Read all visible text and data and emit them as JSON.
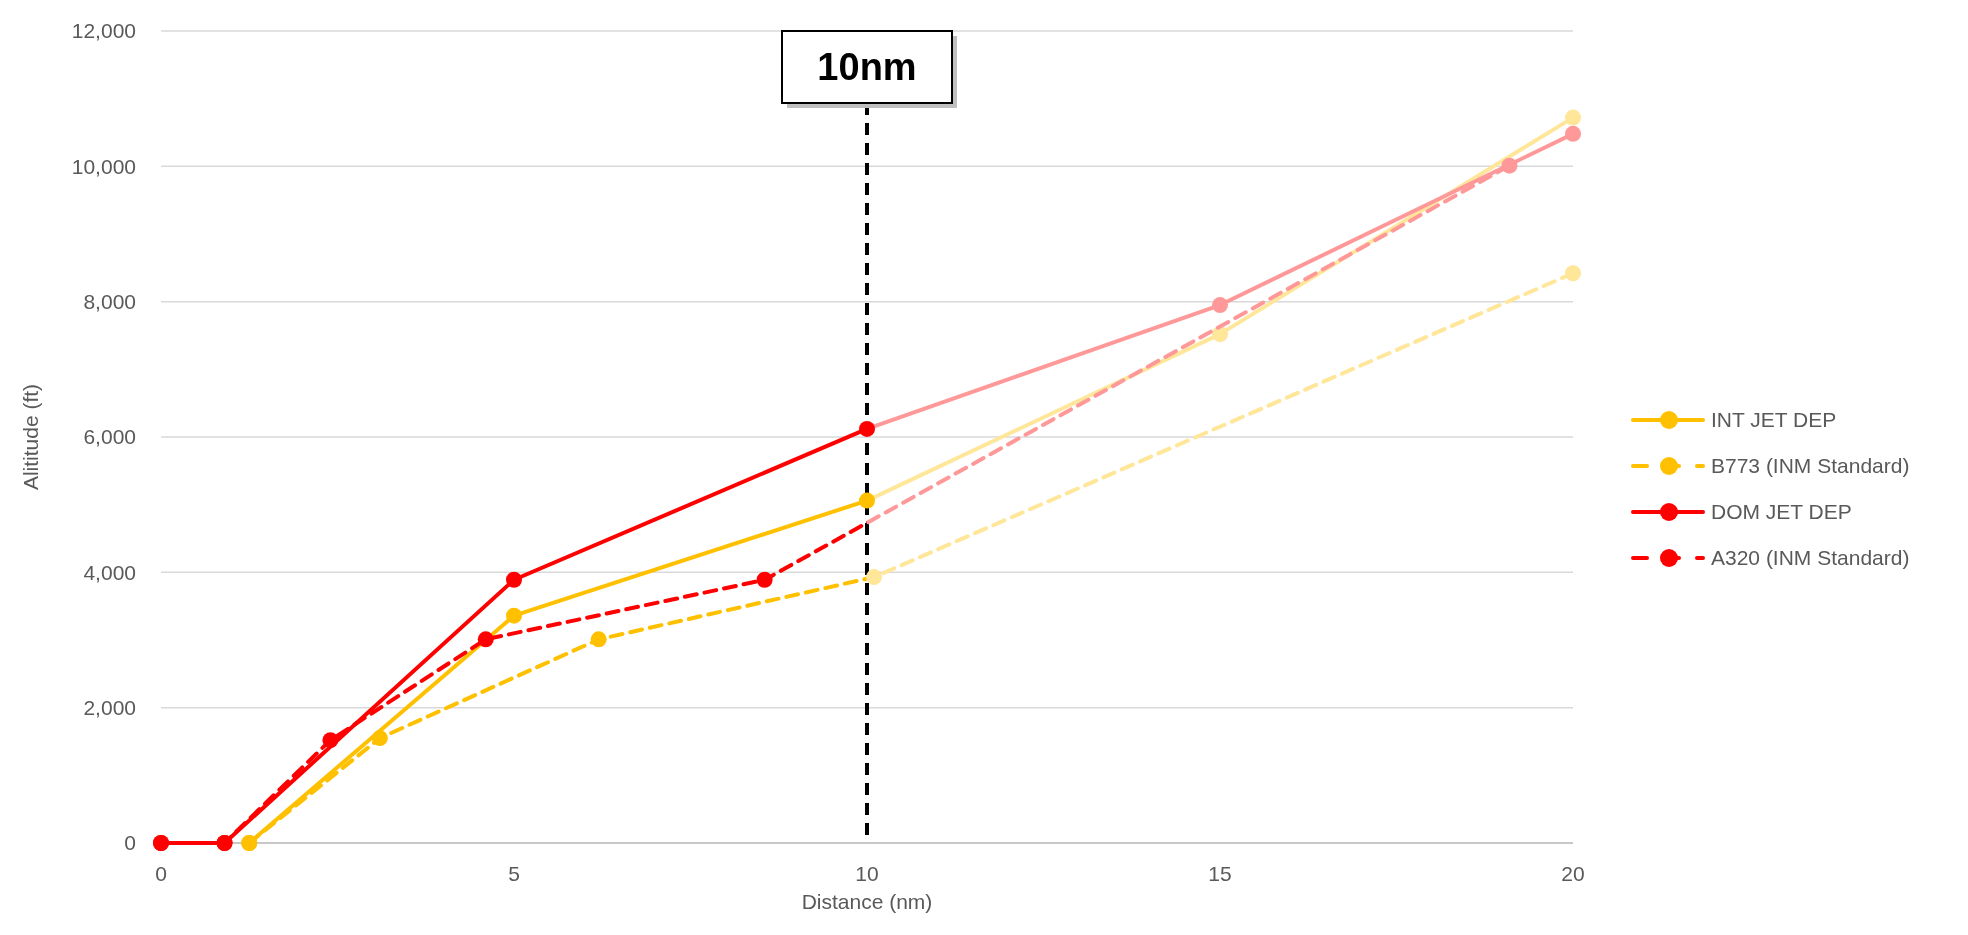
{
  "chart_data": {
    "type": "line",
    "xlabel": "Distance (nm)",
    "ylabel": "Alititude (ft)",
    "xlim": [
      0,
      20
    ],
    "xticks": [
      0,
      5,
      10,
      15,
      20
    ],
    "ylim": [
      0,
      12000
    ],
    "yticks": [
      {
        "value": 0,
        "label": "0"
      },
      {
        "value": 2000,
        "label": "2,000"
      },
      {
        "value": 4000,
        "label": "4,000"
      },
      {
        "value": 6000,
        "label": "6,000"
      },
      {
        "value": 8000,
        "label": "8,000"
      },
      {
        "value": 10000,
        "label": "10,000"
      },
      {
        "value": 12000,
        "label": "12,000"
      }
    ],
    "grid": "y",
    "legend": "right",
    "marker": "circle",
    "ref_lines": [
      {
        "axis": "x",
        "value": 10,
        "label": "10nm",
        "color": "#000000",
        "line_style": "dashed"
      }
    ],
    "series": [
      {
        "name": "INT JET DEP",
        "color": "#ffc000",
        "line_style": "solid",
        "x": [
          1.25,
          5,
          10,
          15,
          20
        ],
        "values": [
          0,
          3360,
          5060,
          7520,
          10720
        ]
      },
      {
        "name": "B773 (INM Standard)",
        "color": "#ffc000",
        "line_style": "dashed",
        "x": [
          1.25,
          3.1,
          6.2,
          10.1,
          20
        ],
        "values": [
          0,
          1550,
          3010,
          3930,
          8420
        ]
      },
      {
        "name": "DOM JET DEP",
        "color": "#ff0000",
        "line_style": "solid",
        "x": [
          0,
          0.9,
          5,
          10,
          15,
          20
        ],
        "values": [
          0,
          0,
          3890,
          6120,
          7950,
          10480
        ]
      },
      {
        "name": "A320 (INM Standard)",
        "color": "#ff0000",
        "line_style": "dashed",
        "x": [
          0,
          0.9,
          2.4,
          4.6,
          8.55,
          19.1
        ],
        "values": [
          0,
          0,
          1520,
          3010,
          3890,
          10010
        ]
      }
    ]
  }
}
